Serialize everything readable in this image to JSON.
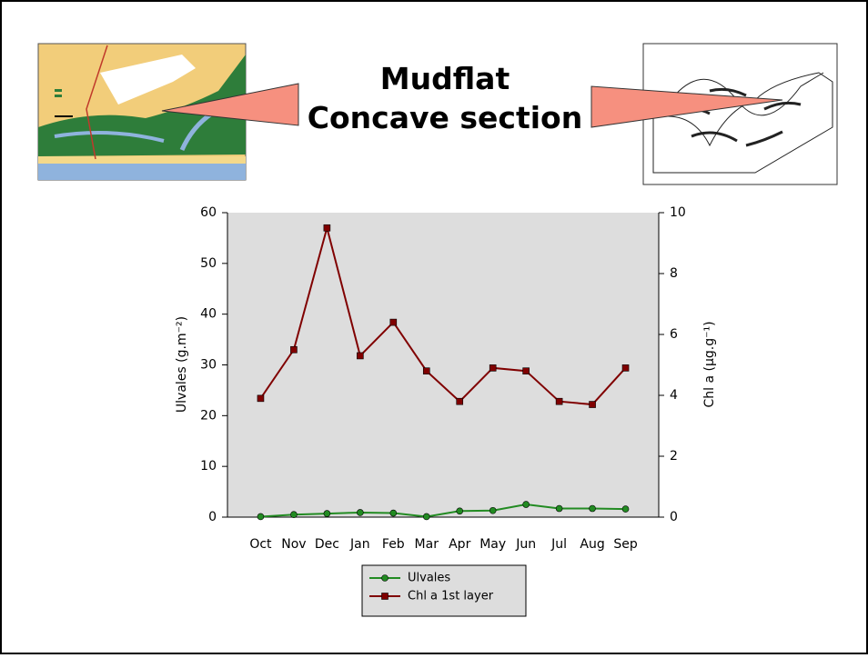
{
  "chart_data": {
    "type": "line",
    "title": [
      "Mudflat",
      "Concave section"
    ],
    "ylabel": "Ulvales (g.m⁻²)",
    "y2label": "Chl a (µg.g⁻¹)",
    "categories": [
      "Oct",
      "Nov",
      "Dec",
      "Jan",
      "Feb",
      "Mar",
      "Apr",
      "May",
      "Jun",
      "Jul",
      "Aug",
      "Sep"
    ],
    "series": [
      {
        "name": "Ulvales",
        "color": "#228b22",
        "marker": "circle",
        "values": [
          0.1,
          0.5,
          0.7,
          0.9,
          0.8,
          0.1,
          1.2,
          1.3,
          2.5,
          1.7,
          1.7,
          1.6
        ]
      },
      {
        "name": "Chl a 1st layer",
        "color": "#800000",
        "marker": "square",
        "axis": "y2",
        "values": [
          3.9,
          5.5,
          9.5,
          5.3,
          6.4,
          4.8,
          3.8,
          4.9,
          4.8,
          3.8,
          3.7,
          4.9
        ]
      }
    ],
    "ylim": [
      0,
      60
    ],
    "yticks": [
      0,
      10,
      20,
      30,
      40,
      50,
      60
    ],
    "y2lim": [
      0,
      10
    ],
    "y2ticks": [
      0,
      2,
      4,
      6,
      8,
      10
    ],
    "plot_background": "#dddddd"
  }
}
